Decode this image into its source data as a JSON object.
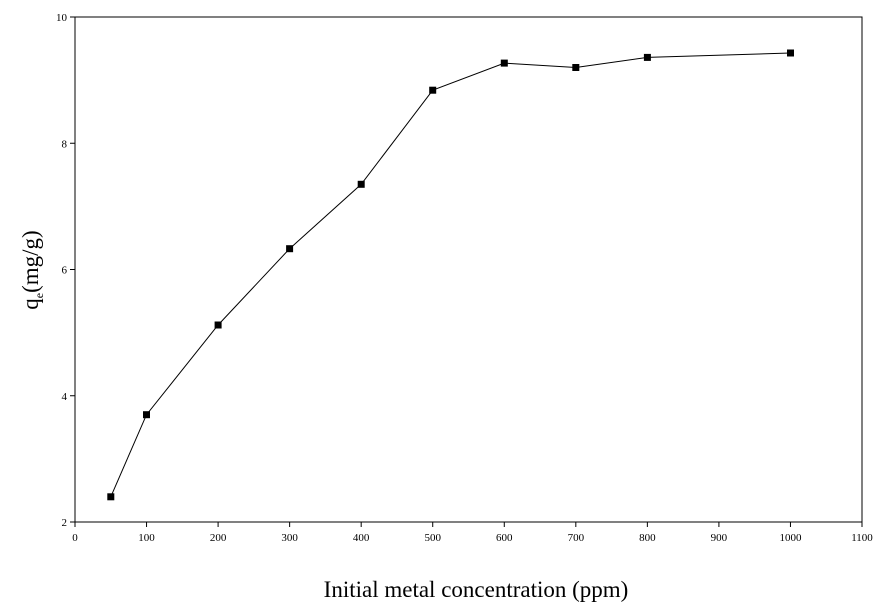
{
  "chart_data": {
    "type": "line",
    "title": "",
    "xlabel": "Initial metal concentration (ppm)",
    "ylabel": {
      "base": "q",
      "subscript": "e",
      "unit": "(mg/g)"
    },
    "xlim": [
      0,
      1100
    ],
    "ylim": [
      2,
      10
    ],
    "xticks": [
      0,
      100,
      200,
      300,
      400,
      500,
      600,
      700,
      800,
      900,
      1000,
      1100
    ],
    "yticks": [
      2,
      4,
      6,
      8,
      10
    ],
    "grid": false,
    "legend": "none",
    "marker": "square",
    "line_color": "#000000",
    "series": [
      {
        "x": [
          50,
          100,
          200,
          300,
          400,
          500,
          600,
          700,
          800,
          1000
        ],
        "y": [
          2.4,
          3.7,
          5.12,
          6.33,
          7.35,
          8.84,
          9.27,
          9.2,
          9.36,
          9.43
        ]
      }
    ]
  }
}
